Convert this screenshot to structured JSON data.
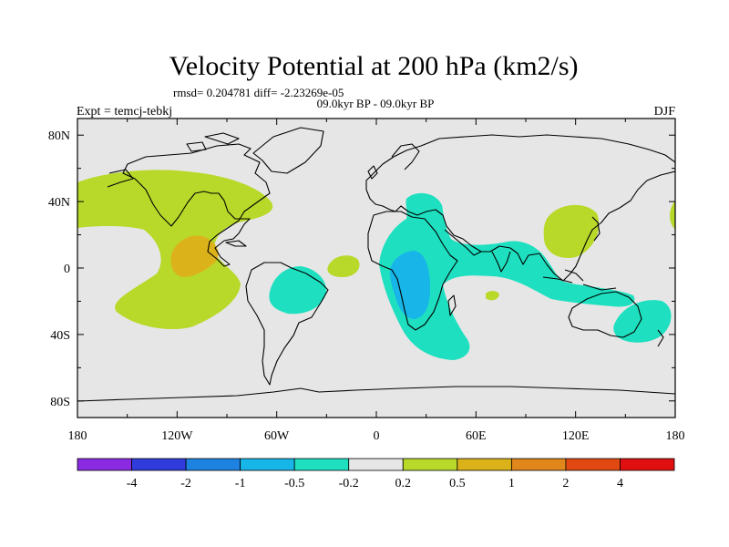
{
  "chart_data": {
    "type": "heatmap",
    "title": "Velocity Potential at 200 hPa (km2/s)",
    "subtitle_stats": "rmsd= 0.204781 diff= -2.23269e-05",
    "subtitle_period": "09.0kyr BP - 09.0kyr BP",
    "left_label": "Expt = temcj-tebkj",
    "right_label": "DJF",
    "x_ticks": [
      "180",
      "120W",
      "60W",
      "0",
      "60E",
      "120E",
      "180"
    ],
    "y_ticks": [
      "80N",
      "40N",
      "0",
      "40S",
      "80S"
    ],
    "xlim": [
      -180,
      180
    ],
    "ylim": [
      -90,
      90
    ],
    "colorbar": {
      "levels": [
        "-4",
        "-2",
        "-1",
        "-0.5",
        "-0.2",
        "0.2",
        "0.5",
        "1",
        "2",
        "4"
      ],
      "colors": [
        "#8a2be2",
        "#2f3bdb",
        "#1e82e0",
        "#17b5e8",
        "#1ee0c0",
        "#e6e6e6",
        "#b8d92a",
        "#dcb21a",
        "#e0861a",
        "#e04a12",
        "#e01010"
      ]
    },
    "colors": {
      "neutral": "#e6e6e6",
      "pos_02": "#b8d92a",
      "pos_05": "#dcb21a",
      "neg_02": "#1ee0c0",
      "neg_05": "#17b5e8"
    },
    "regions": [
      {
        "name": "north-pacific-americas-positive",
        "level": "0.2 to 0.5"
      },
      {
        "name": "eastern-pacific-core",
        "level": "0.5 to 1"
      },
      {
        "name": "african-indian-negative",
        "level": "-0.5 to -0.2"
      },
      {
        "name": "central-africa-core",
        "level": "-1 to -0.5"
      },
      {
        "name": "east-asia-positive",
        "level": "0.2 to 0.5"
      },
      {
        "name": "south-america-negative",
        "level": "-0.5 to -0.2"
      },
      {
        "name": "australia-negative",
        "level": "-0.5 to -0.2"
      }
    ]
  }
}
